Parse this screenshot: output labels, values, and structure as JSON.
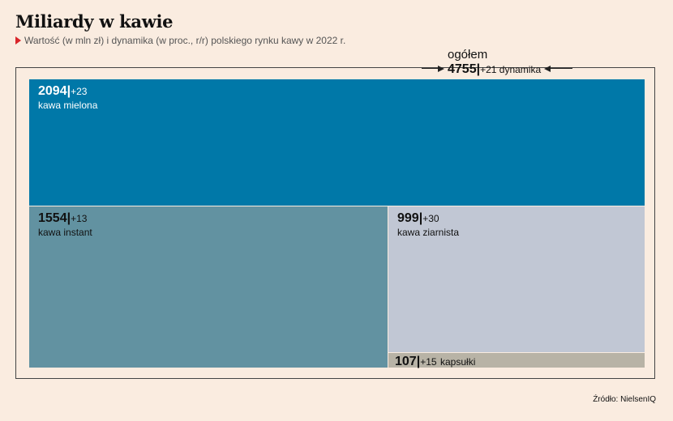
{
  "title": "Miliardy w kawie",
  "subtitle": "Wartość (w mln zł) i dynamika (w proc., r/r) polskiego rynku kawy w 2022 r.",
  "source": "Źródło: NielsenIQ",
  "colors": {
    "background": "#faece0",
    "kawa_mielona": "#0078a8",
    "kawa_instant": "#6292a1",
    "kawa_ziarnista": "#c1c7d4",
    "kapsulki": "#b8b3a6",
    "accent": "#d9252a"
  },
  "total": {
    "label": "ogółem",
    "value": "4755",
    "separator": "|",
    "change": "+21 dynamika"
  },
  "chart_data": {
    "type": "treemap",
    "total": 4755,
    "total_change": 21,
    "items": [
      {
        "name": "kawa mielona",
        "value": 2094,
        "change": 23,
        "value_text": "2094",
        "change_text": "+23"
      },
      {
        "name": "kawa instant",
        "value": 1554,
        "change": 13,
        "value_text": "1554",
        "change_text": "+13"
      },
      {
        "name": "kawa ziarnista",
        "value": 999,
        "change": 30,
        "value_text": "999",
        "change_text": "+30"
      },
      {
        "name": "kapsułki",
        "value": 107,
        "change": 15,
        "value_text": "107",
        "change_text": "+15"
      }
    ]
  }
}
